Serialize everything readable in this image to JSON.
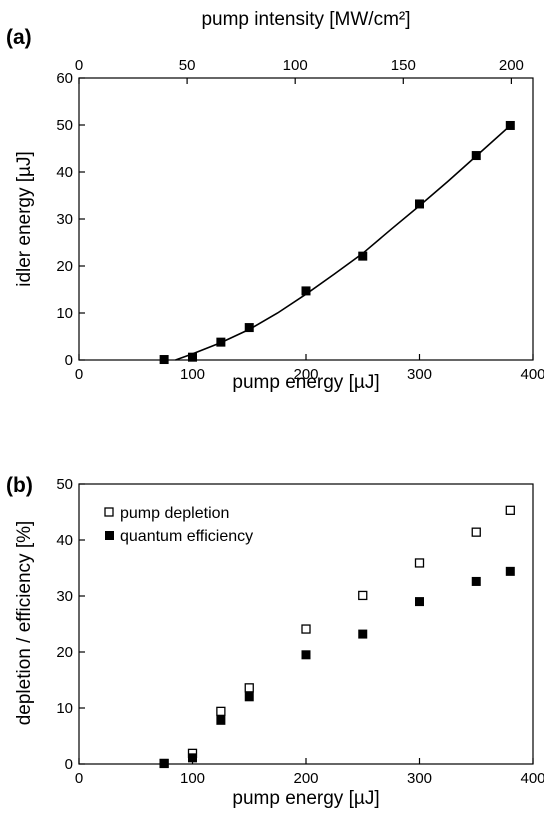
{
  "chart_data": [
    {
      "panel": "(a)",
      "type": "scatter",
      "xlabel": "pump energy [µJ]",
      "ylabel": "idler energy [µJ]",
      "x2label": "pump intensity [MW/cm²]",
      "xlim": [
        0,
        400
      ],
      "ylim": [
        0,
        60
      ],
      "x2lim": [
        0,
        210
      ],
      "xticks": [
        0,
        100,
        200,
        300,
        400
      ],
      "yticks": [
        0,
        10,
        20,
        30,
        40,
        50,
        60
      ],
      "x2ticks": [
        0,
        50,
        100,
        150,
        200
      ],
      "grid": false,
      "series": [
        {
          "marker": "filled-square",
          "x": [
            75,
            100,
            125,
            150,
            200,
            250,
            300,
            350,
            380
          ],
          "y": [
            0.1,
            0.6,
            3.8,
            6.9,
            14.7,
            22.1,
            33.2,
            43.5,
            49.9
          ]
        },
        {
          "style": "line",
          "x": [
            85,
            100,
            125,
            150,
            175,
            200,
            225,
            250,
            275,
            300,
            325,
            350,
            380
          ],
          "y": [
            0,
            1.3,
            3.7,
            6.5,
            10.0,
            14.0,
            18.3,
            22.7,
            27.8,
            32.8,
            38.0,
            43.4,
            49.9
          ]
        }
      ]
    },
    {
      "panel": "(b)",
      "type": "scatter",
      "xlabel": "pump energy [µJ]",
      "ylabel": "depletion / efficiency [%]",
      "xlim": [
        0,
        400
      ],
      "ylim": [
        0,
        50
      ],
      "xticks": [
        0,
        100,
        200,
        300,
        400
      ],
      "yticks": [
        0,
        10,
        20,
        30,
        40,
        50
      ],
      "grid": false,
      "legend_position": "top-left",
      "series": [
        {
          "name": "pump depletion",
          "marker": "open-square",
          "x": [
            75,
            100,
            125,
            150,
            200,
            250,
            300,
            350,
            380
          ],
          "y": [
            0.1,
            1.9,
            9.4,
            13.6,
            24.1,
            30.1,
            35.9,
            41.4,
            45.3
          ]
        },
        {
          "name": "quantum efficiency",
          "marker": "filled-square",
          "x": [
            75,
            100,
            125,
            150,
            200,
            250,
            300,
            350,
            380
          ],
          "y": [
            0.1,
            1.1,
            7.8,
            12.0,
            19.5,
            23.2,
            29.0,
            32.6,
            34.4
          ]
        }
      ]
    }
  ]
}
